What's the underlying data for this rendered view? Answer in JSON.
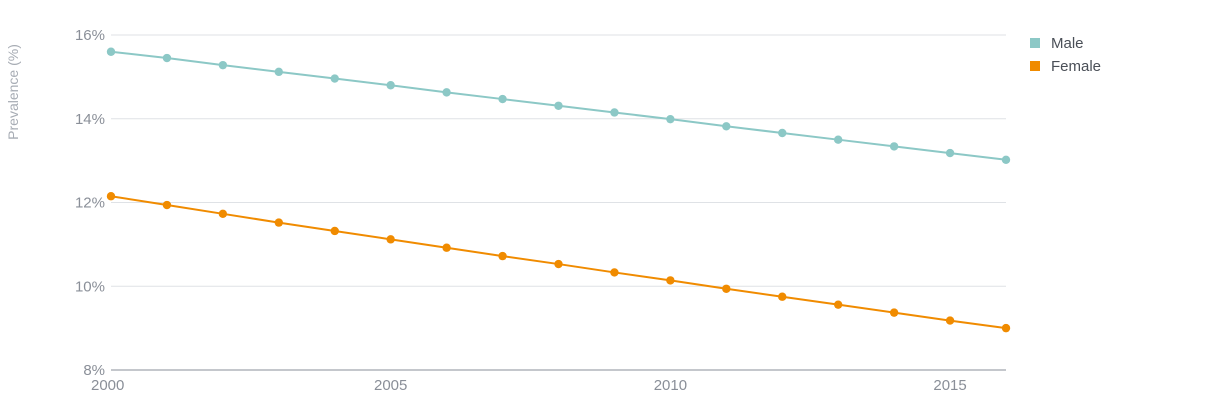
{
  "chart_data": {
    "type": "line",
    "ylabel": "Prevalence (%)",
    "xlabel": "",
    "x": [
      2000,
      2001,
      2002,
      2003,
      2004,
      2005,
      2006,
      2007,
      2008,
      2009,
      2010,
      2011,
      2012,
      2013,
      2014,
      2015,
      2016
    ],
    "xlim": [
      2000,
      2016
    ],
    "ylim": [
      8,
      16
    ],
    "x_ticks": [
      2000,
      2005,
      2010,
      2015
    ],
    "x_tick_labels": [
      "2000",
      "2005",
      "2010",
      "2015"
    ],
    "y_ticks": [
      8,
      10,
      12,
      14,
      16
    ],
    "y_tick_labels": [
      "8%",
      "10%",
      "12%",
      "14%",
      "16%"
    ],
    "grid": true,
    "legend_position": "top-right",
    "series": [
      {
        "name": "Male",
        "color": "#8cc8c6",
        "values": [
          15.6,
          15.45,
          15.28,
          15.12,
          14.96,
          14.8,
          14.63,
          14.47,
          14.31,
          14.15,
          13.99,
          13.82,
          13.66,
          13.5,
          13.34,
          13.18,
          13.02
        ]
      },
      {
        "name": "Female",
        "color": "#f08b00",
        "values": [
          12.15,
          11.94,
          11.73,
          11.52,
          11.32,
          11.12,
          10.92,
          10.72,
          10.53,
          10.33,
          10.14,
          9.94,
          9.75,
          9.56,
          9.37,
          9.18,
          9.0
        ]
      }
    ]
  }
}
